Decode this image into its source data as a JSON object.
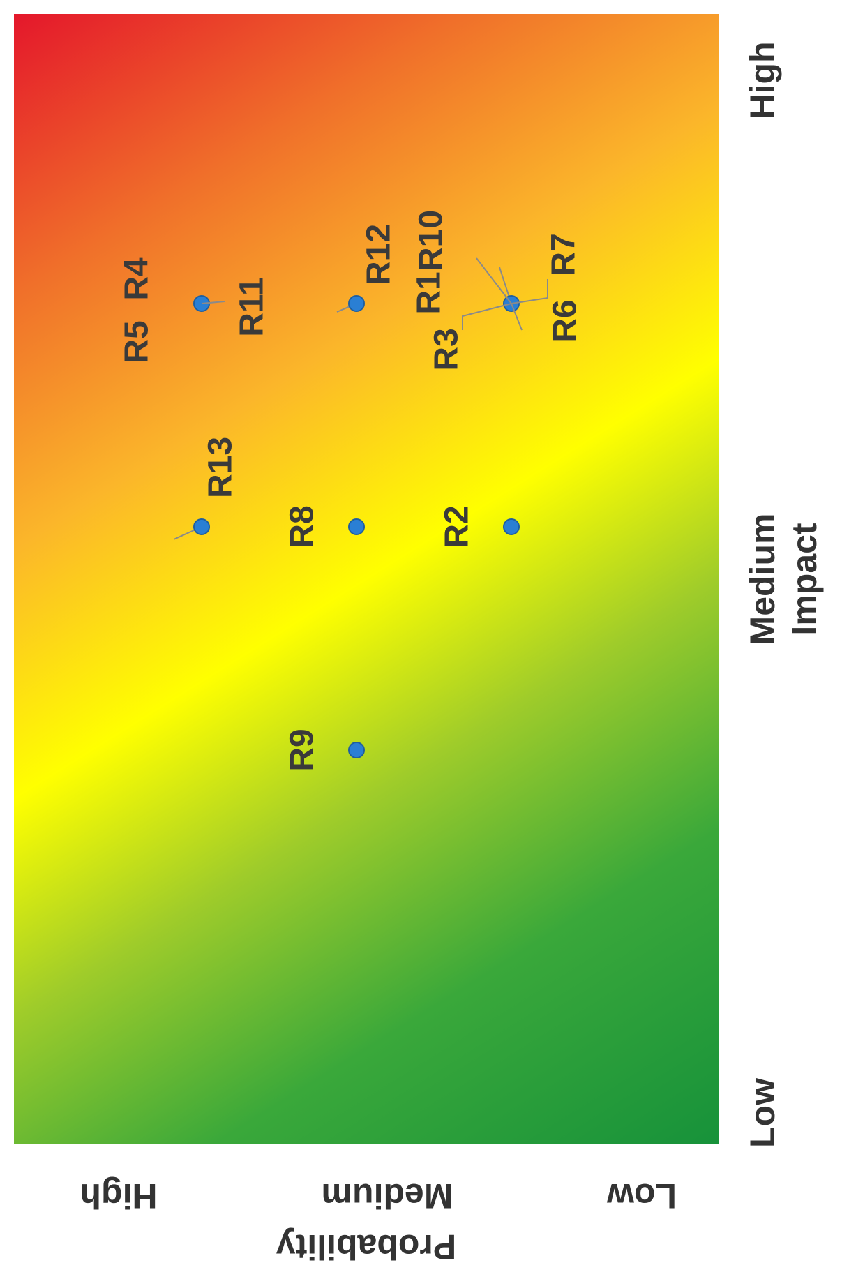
{
  "chart_data": {
    "type": "scatter",
    "title": "",
    "xlabel": "Impact",
    "ylabel": "Probability",
    "x_tick_labels": [
      "Low",
      "Medium",
      "High"
    ],
    "y_tick_labels": [
      "Low",
      "Medium",
      "High"
    ],
    "xlim": [
      1,
      3
    ],
    "ylim": [
      1,
      3
    ],
    "grid": false,
    "legend": "none",
    "background": "diagonal gradient green (low) to yellow to red (high)",
    "colors": {
      "low": "#17923a",
      "mid": "#ffff00",
      "high": "#e4172b",
      "point": "#2a7fd4"
    },
    "points": [
      {
        "label": "R1",
        "x": 2.5,
        "y": 1.5
      },
      {
        "label": "R2",
        "x": 2.0,
        "y": 1.5
      },
      {
        "label": "R3",
        "x": 2.5,
        "y": 1.5
      },
      {
        "label": "R4",
        "x": 2.5,
        "y": 2.5
      },
      {
        "label": "R5",
        "x": 2.5,
        "y": 2.5
      },
      {
        "label": "R6",
        "x": 2.5,
        "y": 1.5
      },
      {
        "label": "R7",
        "x": 2.5,
        "y": 1.5
      },
      {
        "label": "R8",
        "x": 2.0,
        "y": 2.0
      },
      {
        "label": "R9",
        "x": 1.5,
        "y": 2.0
      },
      {
        "label": "R10",
        "x": 2.5,
        "y": 1.5
      },
      {
        "label": "R11",
        "x": 2.5,
        "y": 2.5
      },
      {
        "label": "R12",
        "x": 2.5,
        "y": 2.0
      },
      {
        "label": "R13",
        "x": 2.0,
        "y": 2.5
      }
    ]
  }
}
